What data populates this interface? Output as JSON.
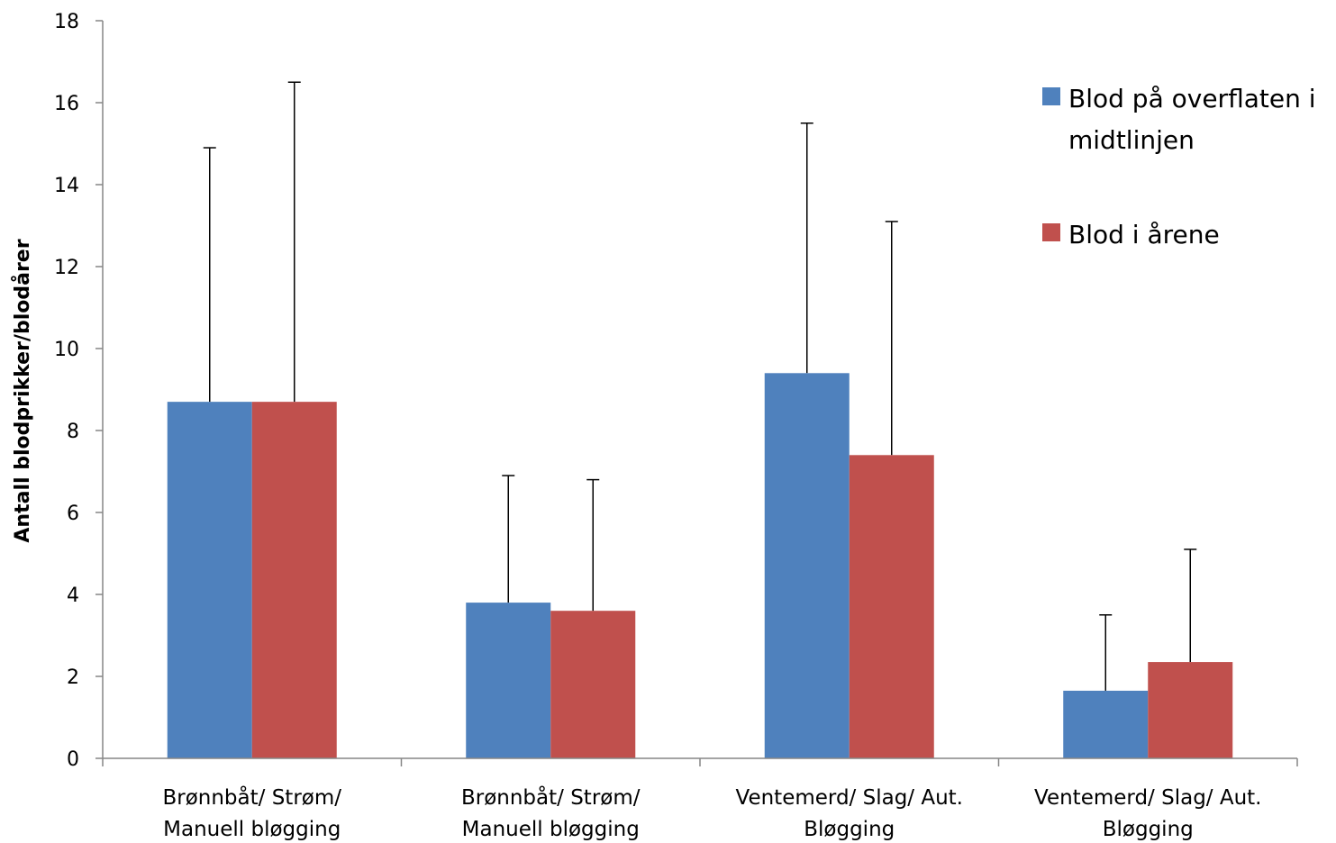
{
  "chart_data": {
    "type": "bar",
    "title": "",
    "xlabel": "",
    "ylabel": "Antall blodprikker/blodårer",
    "ylim": [
      0,
      18
    ],
    "yticks": [
      0,
      2,
      4,
      6,
      8,
      10,
      12,
      14,
      16,
      18
    ],
    "grid": false,
    "legend_position": "top-right",
    "categories": [
      [
        "Brønnbåt/ Strøm/",
        "Manuell bløgging"
      ],
      [
        "Brønnbåt/ Strøm/",
        "Manuell bløgging"
      ],
      [
        "Ventemerd/ Slag/ Aut.",
        "Bløgging"
      ],
      [
        "Ventemerd/ Slag/ Aut.",
        "Bløgging"
      ]
    ],
    "series": [
      {
        "name": "Blod på overflaten i midtlinjen",
        "legend_lines": [
          "Blod på overflaten i",
          "midtlinjen"
        ],
        "color": "#4f81bd",
        "values": [
          8.7,
          3.8,
          9.4,
          1.65
        ],
        "error_upper": [
          14.9,
          6.9,
          15.5,
          3.5
        ]
      },
      {
        "name": "Blod i årene",
        "legend_lines": [
          "Blod i årene"
        ],
        "color": "#c0504d",
        "values": [
          8.7,
          3.6,
          7.4,
          2.35
        ],
        "error_upper": [
          16.5,
          6.8,
          13.1,
          5.1
        ]
      }
    ]
  }
}
